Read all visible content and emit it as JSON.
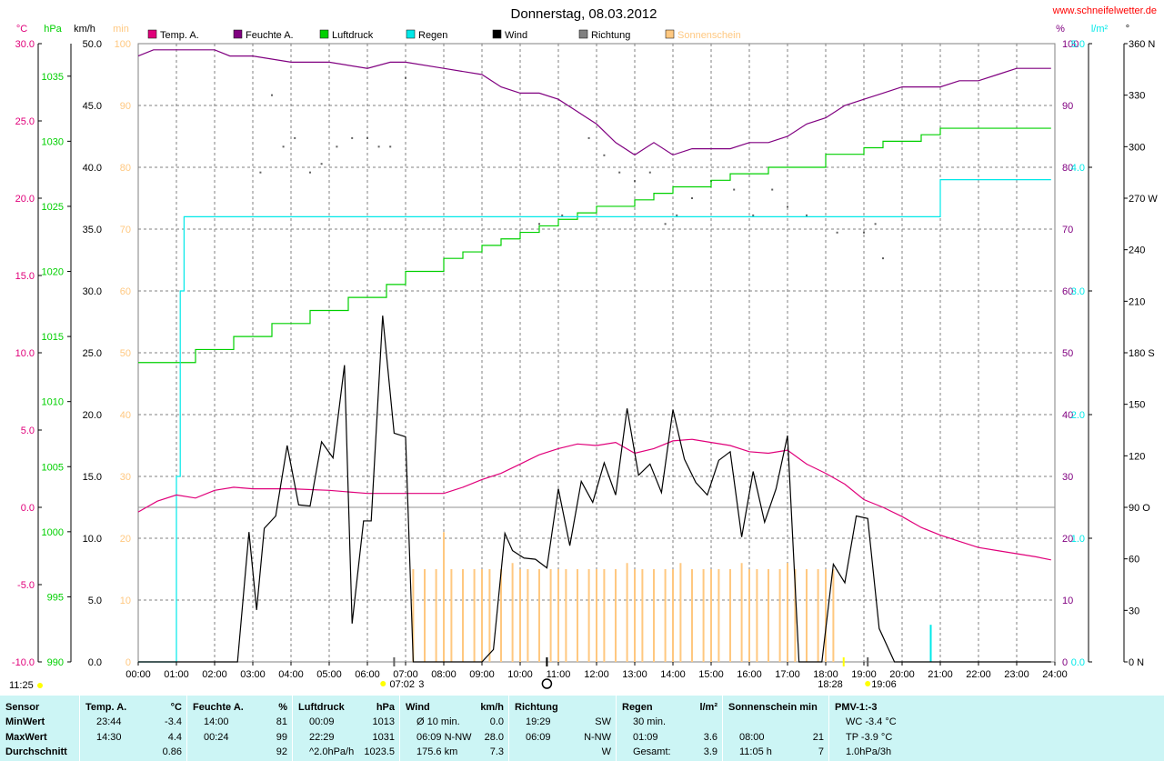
{
  "title": "Donnerstag, 08.03.2012",
  "site": "www.schneifelwetter.de",
  "colors": {
    "temp": "#e0007a",
    "humidity": "#800080",
    "pressure": "#00d000",
    "rain": "#00e8e8",
    "wind": "#000000",
    "direction": "#606060",
    "sunshine": "#ffc880"
  },
  "legend": [
    {
      "label": "Temp. A.",
      "color": "#e0007a"
    },
    {
      "label": "Feuchte A.",
      "color": "#800080"
    },
    {
      "label": "Luftdruck",
      "color": "#00d000"
    },
    {
      "label": "Regen",
      "color": "#00e8e8"
    },
    {
      "label": "Wind",
      "color": "#000000"
    },
    {
      "label": "Richtung",
      "color": "#808080"
    },
    {
      "label": "Sonnenschein",
      "color": "#ffc880"
    }
  ],
  "axes": {
    "temp": {
      "unit": "°C",
      "ticks": [
        "30.0",
        "25.0",
        "20.0",
        "15.0",
        "10.0",
        "5.0",
        "0.0",
        "-5.0",
        "-10.0"
      ]
    },
    "pressure": {
      "unit": "hPa",
      "ticks": [
        "1035",
        "1030",
        "1025",
        "1020",
        "1015",
        "1010",
        "1005",
        "1000",
        "995",
        "990"
      ]
    },
    "wind": {
      "unit": "km/h",
      "ticks": [
        "50.0",
        "45.0",
        "40.0",
        "35.0",
        "30.0",
        "25.0",
        "20.0",
        "15.0",
        "10.0",
        "5.0",
        "0.0"
      ]
    },
    "sun": {
      "unit": "min",
      "ticks": [
        "100",
        "90",
        "80",
        "70",
        "60",
        "50",
        "40",
        "30",
        "20",
        "10",
        "0"
      ]
    },
    "humidity": {
      "unit": "%",
      "ticks": [
        "100",
        "90",
        "80",
        "70",
        "60",
        "50",
        "40",
        "30",
        "20",
        "10",
        "0"
      ]
    },
    "rain": {
      "unit": "l/m²",
      "ticks": [
        "5.0",
        "4.0",
        "3.0",
        "2.0",
        "1.0",
        "0.0"
      ]
    },
    "direction": {
      "unit": "°",
      "ticks": [
        "360 N",
        "330",
        "300",
        "270 W",
        "240",
        "210",
        "180 S",
        "150",
        "120",
        "90 O",
        "60",
        "30",
        "0 N"
      ]
    },
    "time": {
      "ticks": [
        "00:00",
        "01:00",
        "02:00",
        "03:00",
        "04:00",
        "05:00",
        "06:00",
        "07:00",
        "08:00",
        "09:00",
        "10:00",
        "11:00",
        "12:00",
        "13:00",
        "14:00",
        "15:00",
        "16:00",
        "17:00",
        "18:00",
        "19:00",
        "20:00",
        "21:00",
        "22:00",
        "23:00",
        "24:00"
      ]
    }
  },
  "markers": {
    "left_time": "11:25",
    "sunrise": "07:02",
    "sunrise_suffix": "3",
    "sunset_start": "18:28",
    "sunset": "19:06"
  },
  "chart_data": {
    "type": "line",
    "title": "Donnerstag, 08.03.2012",
    "x_range": [
      "00:00",
      "24:00"
    ],
    "series": [
      {
        "name": "Temp. A.",
        "unit": "°C",
        "axis_range": [
          -10,
          30
        ],
        "x": [
          0,
          0.5,
          1,
          1.5,
          2,
          2.5,
          3,
          4,
          5,
          6,
          7,
          8,
          8.5,
          9,
          9.5,
          10,
          10.5,
          11,
          11.5,
          12,
          12.5,
          13,
          13.5,
          14,
          14.5,
          15,
          15.5,
          16,
          16.5,
          17,
          17.5,
          18,
          18.5,
          19,
          19.5,
          20,
          20.5,
          21,
          21.5,
          22,
          22.5,
          23,
          23.5,
          23.9
        ],
        "values": [
          -0.3,
          0.4,
          0.8,
          0.6,
          1.1,
          1.3,
          1.2,
          1.2,
          1.1,
          0.9,
          0.9,
          0.9,
          1.3,
          1.8,
          2.2,
          2.8,
          3.4,
          3.8,
          4.1,
          4.0,
          4.2,
          3.5,
          3.8,
          4.3,
          4.4,
          4.2,
          4.0,
          3.6,
          3.5,
          3.7,
          2.8,
          2.2,
          1.5,
          0.5,
          0.0,
          -0.6,
          -1.3,
          -1.8,
          -2.2,
          -2.6,
          -2.8,
          -3.0,
          -3.2,
          -3.4
        ]
      },
      {
        "name": "Feuchte A.",
        "unit": "%",
        "axis_range": [
          0,
          100
        ],
        "x": [
          0,
          0.4,
          1,
          2,
          2.4,
          3,
          4,
          5,
          6,
          6.6,
          7,
          8,
          9,
          9.5,
          10,
          10.5,
          11,
          11.5,
          12,
          12.5,
          13,
          13.5,
          14,
          14.5,
          15,
          15.5,
          16,
          16.5,
          17,
          17.5,
          18,
          18.5,
          19,
          19.5,
          20,
          20.5,
          21,
          21.5,
          22,
          22.5,
          23,
          23.4,
          23.9
        ],
        "values": [
          98,
          99,
          99,
          99,
          98,
          98,
          97,
          97,
          96,
          97,
          97,
          96,
          95,
          93,
          92,
          92,
          91,
          89,
          87,
          84,
          82,
          84,
          82,
          83,
          83,
          83,
          84,
          84,
          85,
          87,
          88,
          90,
          91,
          92,
          93,
          93,
          93,
          94,
          94,
          95,
          96,
          96,
          96
        ]
      },
      {
        "name": "Luftdruck",
        "unit": "hPa",
        "axis_range": [
          990,
          1037.5
        ],
        "x": [
          0,
          1.5,
          2.5,
          3.5,
          4.5,
          5.5,
          6.5,
          7,
          8,
          8.5,
          9,
          9.5,
          10,
          10.5,
          11,
          11.5,
          12,
          12.5,
          13,
          13.5,
          14,
          14.5,
          15,
          15.5,
          16,
          16.5,
          17,
          17.5,
          18,
          18.5,
          19,
          19.5,
          20,
          20.5,
          21,
          21.5,
          22,
          22.5,
          23,
          23.5,
          23.9
        ],
        "values": [
          1013,
          1014,
          1015,
          1016,
          1017,
          1018,
          1019,
          1020,
          1021,
          1021.5,
          1022,
          1022.5,
          1023,
          1023.5,
          1024,
          1024.5,
          1025,
          1025,
          1025.5,
          1026,
          1026.5,
          1026.5,
          1027,
          1027.5,
          1027.5,
          1028,
          1028,
          1028,
          1029,
          1029,
          1029.5,
          1030,
          1030,
          1030.5,
          1031,
          1031,
          1031,
          1031,
          1031,
          1031,
          1031
        ]
      },
      {
        "name": "Regen",
        "unit": "l/m²",
        "axis_range": [
          0,
          5
        ],
        "x": [
          0,
          0.9,
          1.0,
          1.1,
          1.2,
          20.5,
          20.7,
          21.0,
          23.9
        ],
        "values": [
          0,
          0,
          1.5,
          3.0,
          3.6,
          3.6,
          3.6,
          3.9,
          3.9
        ]
      },
      {
        "name": "Wind",
        "unit": "km/h",
        "axis_range": [
          0,
          50
        ],
        "x": [
          0,
          2.6,
          2.9,
          3.1,
          3.3,
          3.6,
          3.9,
          4.2,
          4.5,
          4.8,
          5.1,
          5.4,
          5.6,
          5.9,
          6.1,
          6.4,
          6.7,
          7.0,
          7.2,
          9.0,
          9.3,
          9.6,
          9.8,
          10.1,
          10.4,
          10.7,
          11.0,
          11.3,
          11.6,
          11.9,
          12.2,
          12.5,
          12.8,
          13.1,
          13.4,
          13.7,
          14.0,
          14.3,
          14.6,
          14.9,
          15.2,
          15.5,
          15.8,
          16.1,
          16.4,
          16.7,
          17.0,
          17.3,
          17.6,
          17.9,
          18.2,
          18.5,
          18.8,
          19.1,
          19.4,
          19.8,
          23.9
        ],
        "values": [
          0,
          0,
          10.5,
          4.2,
          10.8,
          11.8,
          17.5,
          12.7,
          12.6,
          17.8,
          16.5,
          24.0,
          3.1,
          11.4,
          11.4,
          28.0,
          18.5,
          18.2,
          0,
          0,
          1.0,
          10.4,
          9.0,
          8.4,
          8.3,
          7.6,
          14.0,
          9.4,
          14.6,
          12.9,
          16.1,
          13.5,
          20.5,
          15.1,
          16.0,
          13.7,
          20.4,
          16.4,
          14.5,
          13.5,
          16.3,
          17.0,
          10.1,
          15.4,
          11.3,
          14.0,
          18.3,
          0,
          0,
          0,
          7.9,
          6.4,
          11.8,
          11.6,
          2.7,
          0,
          0
        ]
      },
      {
        "name": "Sonnenschein",
        "unit": "min",
        "axis_range": [
          0,
          100
        ],
        "x": [
          7.2,
          7.5,
          7.8,
          8.0,
          8.2,
          8.5,
          8.8,
          9.0,
          9.2,
          9.5,
          9.8,
          10.0,
          10.2,
          10.5,
          10.8,
          11.0,
          11.2,
          11.5,
          11.8,
          12.0,
          12.2,
          12.5,
          12.8,
          13.0,
          13.2,
          13.5,
          13.8,
          14.0,
          14.2,
          14.5,
          14.8,
          15.0,
          15.2,
          15.5,
          15.8,
          16.0,
          16.2,
          16.5,
          16.8,
          17.0,
          17.2,
          17.5,
          17.8,
          18.0,
          18.2
        ],
        "values": [
          15,
          15,
          15,
          21,
          15,
          15,
          15,
          15,
          15,
          15,
          16,
          15,
          15,
          15,
          15,
          15,
          15,
          15,
          15,
          15,
          15,
          15,
          16,
          15,
          15,
          15,
          15,
          15,
          16,
          15,
          15,
          15,
          15,
          15,
          16,
          15,
          15,
          15,
          15,
          16,
          15,
          15,
          15,
          15,
          15
        ]
      },
      {
        "name": "Richtung",
        "unit": "°",
        "axis_range": [
          0,
          360
        ],
        "x": [
          3.2,
          3.5,
          3.8,
          4.1,
          4.5,
          4.8,
          5.2,
          5.6,
          6.0,
          6.3,
          6.6,
          7.0,
          10.5,
          11.1,
          11.8,
          12.2,
          12.6,
          13.0,
          13.4,
          13.8,
          14.1,
          14.5,
          15.0,
          15.6,
          16.1,
          16.6,
          17.0,
          17.5,
          18.3,
          19.0,
          19.3,
          19.5
        ],
        "values": [
          285,
          330,
          300,
          305,
          285,
          290,
          300,
          305,
          305,
          300,
          300,
          340,
          255,
          260,
          305,
          295,
          285,
          280,
          285,
          255,
          260,
          270,
          280,
          275,
          260,
          275,
          265,
          260,
          250,
          250,
          255,
          235
        ]
      }
    ]
  },
  "footer": {
    "columns": [
      {
        "header": [
          "Sensor",
          ""
        ],
        "rows": [
          [
            "MinWert",
            ""
          ],
          [
            "MaxWert",
            ""
          ],
          [
            "Durchschnitt",
            ""
          ]
        ]
      },
      {
        "header": [
          "Temp. A.",
          "°C"
        ],
        "rows": [
          [
            "23:44",
            "-3.4"
          ],
          [
            "14:30",
            "4.4"
          ],
          [
            "",
            "0.86"
          ]
        ]
      },
      {
        "header": [
          "Feuchte A.",
          "%"
        ],
        "rows": [
          [
            "14:00",
            "81"
          ],
          [
            "00:24",
            "99"
          ],
          [
            "",
            "92"
          ]
        ]
      },
      {
        "header": [
          "Luftdruck",
          "hPa"
        ],
        "rows": [
          [
            "00:09",
            "1013"
          ],
          [
            "22:29",
            "1031"
          ],
          [
            "^2.0hPa/h",
            "1023.5"
          ]
        ]
      },
      {
        "header": [
          "Wind",
          "km/h"
        ],
        "rows": [
          [
            "Ø 10 min.",
            "0.0"
          ],
          [
            "06:09    N-NW",
            "28.0"
          ],
          [
            "175.6 km",
            "7.3"
          ]
        ]
      },
      {
        "header": [
          "Richtung",
          ""
        ],
        "rows": [
          [
            "19:29",
            "SW"
          ],
          [
            "06:09",
            "N-NW"
          ],
          [
            "",
            "W"
          ]
        ]
      },
      {
        "header": [
          "Regen",
          "l/m²"
        ],
        "rows": [
          [
            "30 min.",
            ""
          ],
          [
            "01:09",
            "3.6"
          ],
          [
            "Gesamt:",
            "3.9"
          ]
        ]
      },
      {
        "header": [
          "Sonnenschein min",
          ""
        ],
        "rows": [
          [
            "",
            ""
          ],
          [
            "08:00",
            "21"
          ],
          [
            "11:05 h",
            "7"
          ]
        ]
      },
      {
        "header": [
          "PMV-1:-3",
          ""
        ],
        "rows": [
          [
            "WC -3.4 °C",
            ""
          ],
          [
            "TP -3.9 °C",
            ""
          ],
          [
            "1.0hPa/3h",
            ""
          ]
        ]
      }
    ]
  }
}
